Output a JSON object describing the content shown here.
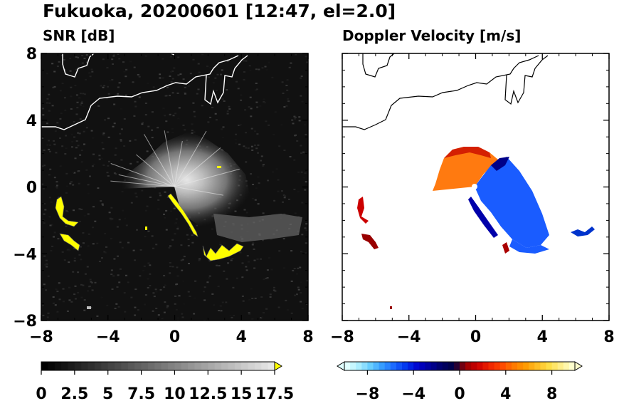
{
  "figure": {
    "title": "Fukuoka, 20200601 [12:47, el=2.0]"
  },
  "chart_data": [
    {
      "type": "heatmap",
      "title": "SNR [dB]",
      "xlim": [
        -8,
        8
      ],
      "ylim": [
        -8,
        8
      ],
      "xticks": [
        "−8",
        "−4",
        "0",
        "4",
        "8"
      ],
      "yticks": [
        "8",
        "4",
        "0",
        "−4",
        "−8"
      ],
      "tick_values": [
        -8,
        -4,
        0,
        4,
        8
      ],
      "colorbar": {
        "range": [
          0,
          17.5
        ],
        "tick_values": [
          0,
          2.5,
          5,
          7.5,
          10,
          12.5,
          15,
          17.5
        ],
        "tick_labels": [
          "0",
          "2.5",
          "5",
          "7.5",
          "10",
          "12.5",
          "15",
          "17.5"
        ],
        "extend": "max",
        "extend_color": "#ffff00",
        "colormap": "greyscale"
      },
      "radar_center": [
        0,
        0
      ]
    },
    {
      "type": "heatmap",
      "title": "Doppler Velocity [m/s]",
      "xlim": [
        -8,
        8
      ],
      "ylim": [
        -8,
        8
      ],
      "xticks": [
        "−8",
        "−4",
        "0",
        "4",
        "8"
      ],
      "tick_values": [
        -8,
        -4,
        0,
        4,
        8
      ],
      "colorbar": {
        "range": [
          -10,
          10
        ],
        "tick_values": [
          -8,
          -4,
          0,
          4,
          8
        ],
        "tick_labels": [
          "−8",
          "−4",
          "0",
          "4",
          "8"
        ],
        "extend": "both",
        "colormap": "blue-white-red diverging",
        "negative_colors": [
          "#e0ffff",
          "#aaeeff",
          "#66ccff",
          "#3399ff",
          "#1a66ff",
          "#0033ee",
          "#0000cc",
          "#000099",
          "#000066",
          "#000044"
        ],
        "positive_colors": [
          "#990000",
          "#cc0000",
          "#ee2200",
          "#ff4400",
          "#ff7700",
          "#ff9900",
          "#ffbb22",
          "#ffdd44",
          "#ffee88",
          "#ffffcc"
        ]
      },
      "radar_center": [
        0,
        0
      ]
    }
  ]
}
